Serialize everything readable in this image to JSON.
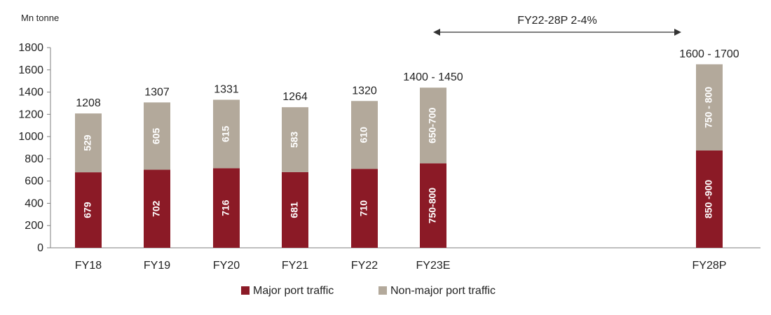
{
  "chart_data": {
    "type": "bar",
    "stacked": true,
    "unit_label": "Mn tonne",
    "categories": [
      "FY18",
      "FY19",
      "FY20",
      "FY21",
      "FY22",
      "FY23E",
      "FY28P"
    ],
    "ylim": [
      0,
      1800
    ],
    "yticks": [
      0,
      200,
      400,
      600,
      800,
      1000,
      1200,
      1400,
      1600,
      1800
    ],
    "series": [
      {
        "name": "Major port traffic",
        "color": "#8b1a26",
        "values": [
          679,
          702,
          716,
          681,
          710,
          760,
          875
        ],
        "labels": [
          "679",
          "702",
          "716",
          "681",
          "710",
          "750-800",
          "850 -900"
        ]
      },
      {
        "name": "Non-major port traffic",
        "color": "#b3a99b",
        "values": [
          529,
          605,
          615,
          583,
          610,
          680,
          775
        ],
        "labels": [
          "529",
          "605",
          "615",
          "583",
          "610",
          "650-700",
          "750 - 800"
        ]
      }
    ],
    "totals": [
      "1208",
      "1307",
      "1331",
      "1264",
      "1320",
      "1400 - 1450",
      "1600 - 1700"
    ],
    "annotation": {
      "text": "FY22-28P 2-4%",
      "from_category": "FY23E",
      "to_category": "FY28P"
    },
    "legend_position": "bottom",
    "grid": false
  }
}
